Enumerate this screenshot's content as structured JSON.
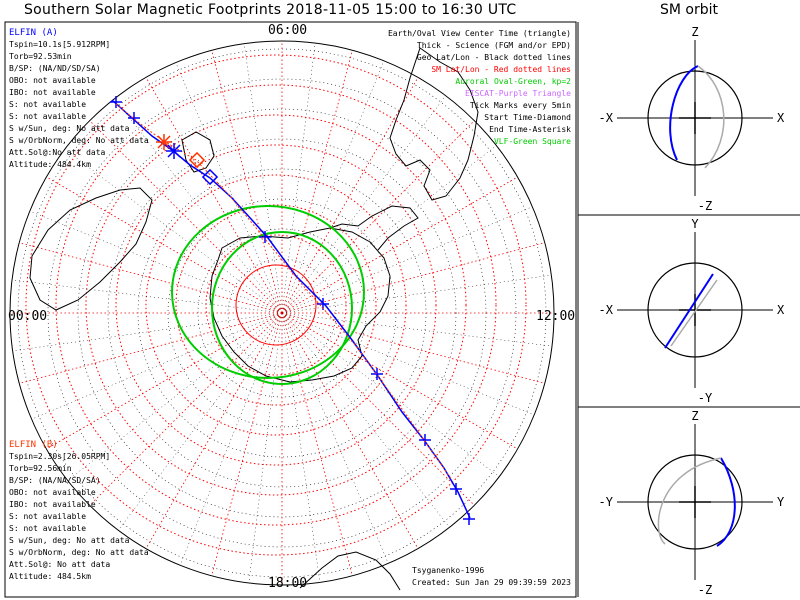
{
  "title": "Southern Solar Magnetic Footprints 2018-11-05 15:00 to 16:30 UTC",
  "orbit_title": "SM orbit",
  "colors": {
    "blue": "#0000ff",
    "red": "#ff3300",
    "green": "#00cc00",
    "purple": "#cc66ff",
    "grid": "#ff0000",
    "geo": "#000000"
  },
  "map": {
    "hour_labels": {
      "top": "06:00",
      "left": "00:00",
      "right": "12:00",
      "bottom": "18:00"
    },
    "legend": [
      {
        "text": "Earth/Oval View Center Time (triangle)",
        "color": "#000000"
      },
      {
        "text": "Thick - Science (FGM and/or EPD)",
        "color": "#000000"
      },
      {
        "text": "Geo Lat/Lon - Black dotted lines",
        "color": "#000000"
      },
      {
        "text": "SM Lat/Lon - Red dotted lines",
        "color": "#ff0000"
      },
      {
        "text": "Auroral Oval-Green, kp=2",
        "color": "#00cc00"
      },
      {
        "text": "EISCAT-Purple Triangle",
        "color": "#cc66ff"
      },
      {
        "text": "Tick Marks every 5min",
        "color": "#000000"
      },
      {
        "text": "Start Time-Diamond",
        "color": "#000000"
      },
      {
        "text": "End Time-Asterisk",
        "color": "#000000"
      },
      {
        "text": "VLF-Green Square",
        "color": "#00cc00"
      }
    ],
    "footer": [
      "Tsyganenko-1996",
      "Created: Sun Jan 29 09:39:59 2023"
    ]
  },
  "spacecraft_a": {
    "name": "ELFIN (A)",
    "lines": [
      "Tspin=10.1s[5.912RPM]",
      "Torb=92.53min",
      "B/SP: (NA/ND/SD/SA)",
      "OBO: not available",
      "IBO: not available",
      "S: not available",
      "S: not available",
      "S w/Sun, deg: No att data",
      "S w/OrbNorm, deg: No att data",
      "Att.Sol@:No att data",
      "Altitude: 484.4km"
    ]
  },
  "spacecraft_b": {
    "name": "ELFIN (B)",
    "lines": [
      "Tspin=2.30s[26.05RPM]",
      "Torb=92.56min",
      "B/SP: (NA/NA/SD/SA)",
      "OBO: not available",
      "IBO: not available",
      "S: not available",
      "S: not available",
      "S w/Sun, deg: No att data",
      "S w/OrbNorm, deg: No att data",
      "Att.Sol@: No att data",
      "Altitude: 484.5km"
    ]
  },
  "orbit_panels": [
    {
      "top": "Z",
      "bottom": "-Z",
      "left": "-X",
      "right": "X"
    },
    {
      "top": "Y",
      "bottom": "-Y",
      "left": "-X",
      "right": "X"
    },
    {
      "top": "Z",
      "bottom": "-Z",
      "left": "-Y",
      "right": "Y"
    }
  ]
}
